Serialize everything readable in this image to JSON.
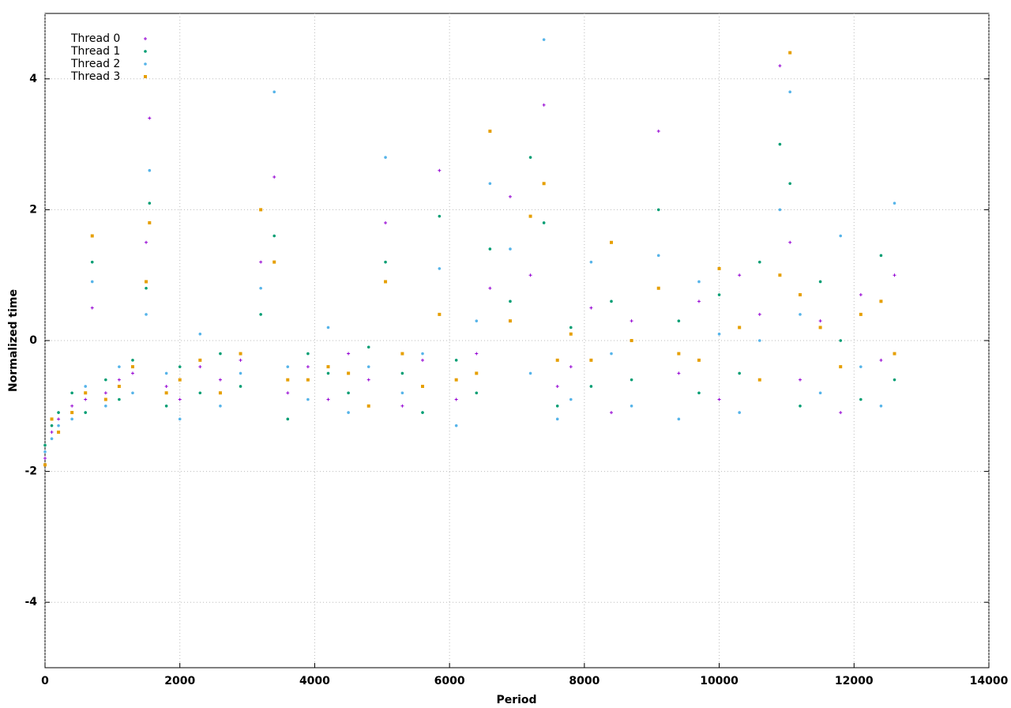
{
  "chart_data": {
    "type": "scatter",
    "x_label": "Period",
    "y_label": "Normalized time",
    "xlim": [
      0,
      14000
    ],
    "ylim": [
      -5,
      5
    ],
    "xticks": [
      0,
      2000,
      4000,
      6000,
      8000,
      10000,
      12000,
      14000
    ],
    "yticks": [
      -4,
      -2,
      0,
      2,
      4
    ],
    "grid": true,
    "legend": "top-left",
    "x": [
      0,
      100,
      200,
      400,
      600,
      700,
      900,
      1100,
      1300,
      1500,
      1550,
      1800,
      2000,
      2300,
      2600,
      2900,
      3200,
      3400,
      3600,
      3900,
      4200,
      4500,
      4800,
      5050,
      5300,
      5600,
      5850,
      6100,
      6400,
      6600,
      6900,
      7200,
      7400,
      7600,
      7800,
      8100,
      8400,
      8700,
      9100,
      9400,
      9700,
      10000,
      10300,
      10600,
      10900,
      11050,
      11200,
      11500,
      11800,
      12100,
      12400,
      12600
    ],
    "series": [
      {
        "name": "Thread 0",
        "color": "#9400d3",
        "marker": "plus",
        "values": [
          -1.8,
          -1.4,
          -1.2,
          -1.0,
          -0.9,
          0.5,
          -0.8,
          -0.6,
          -0.5,
          1.5,
          3.4,
          -0.7,
          -0.9,
          -0.4,
          -0.6,
          -0.3,
          1.2,
          2.5,
          -0.8,
          -0.4,
          -0.9,
          -0.2,
          -0.6,
          1.8,
          -1.0,
          -0.3,
          2.6,
          -0.9,
          -0.2,
          0.8,
          2.2,
          1.0,
          3.6,
          -0.7,
          -0.4,
          0.5,
          -1.1,
          0.3,
          3.2,
          -0.5,
          0.6,
          -0.9,
          1.0,
          0.4,
          4.2,
          1.5,
          -0.6,
          0.3,
          -1.1,
          0.7,
          -0.3,
          1.0
        ]
      },
      {
        "name": "Thread 1",
        "color": "#009e73",
        "marker": "dot",
        "values": [
          -1.6,
          -1.3,
          -1.1,
          -0.8,
          -1.1,
          1.2,
          -0.6,
          -0.9,
          -0.3,
          0.8,
          2.1,
          -1.0,
          -0.4,
          -0.8,
          -0.2,
          -0.7,
          0.4,
          1.6,
          -1.2,
          -0.2,
          -0.5,
          -0.8,
          -0.1,
          1.2,
          -0.5,
          -1.1,
          1.9,
          -0.3,
          -0.8,
          1.4,
          0.6,
          2.8,
          1.8,
          -1.0,
          0.2,
          -0.7,
          0.6,
          -0.6,
          2.0,
          0.3,
          -0.8,
          0.7,
          -0.5,
          1.2,
          3.0,
          2.4,
          -1.0,
          0.9,
          0.0,
          -0.9,
          1.3,
          -0.6
        ]
      },
      {
        "name": "Thread 2",
        "color": "#56b4e9",
        "marker": "dot",
        "values": [
          -1.7,
          -1.5,
          -1.3,
          -1.2,
          -0.7,
          0.9,
          -1.0,
          -0.4,
          -0.8,
          0.4,
          2.6,
          -0.5,
          -1.2,
          0.1,
          -1.0,
          -0.5,
          0.8,
          3.8,
          -0.4,
          -0.9,
          0.2,
          -1.1,
          -0.4,
          2.8,
          -0.8,
          -0.2,
          1.1,
          -1.3,
          0.3,
          2.4,
          1.4,
          -0.5,
          4.6,
          -1.2,
          -0.9,
          1.2,
          -0.2,
          -1.0,
          1.3,
          -1.2,
          0.9,
          0.1,
          -1.1,
          0.0,
          2.0,
          3.8,
          0.4,
          -0.8,
          1.6,
          -0.4,
          -1.0,
          2.1
        ]
      },
      {
        "name": "Thread 3",
        "color": "#e69f00",
        "marker": "square",
        "values": [
          -1.9,
          -1.2,
          -1.4,
          -1.1,
          -0.8,
          1.6,
          -0.9,
          -0.7,
          -0.4,
          0.9,
          1.8,
          -0.8,
          -0.6,
          -0.3,
          -0.8,
          -0.2,
          2.0,
          1.2,
          -0.6,
          -0.6,
          -0.4,
          -0.5,
          -1.0,
          0.9,
          -0.2,
          -0.7,
          0.4,
          -0.6,
          -0.5,
          3.2,
          0.3,
          1.9,
          2.4,
          -0.3,
          0.1,
          -0.3,
          1.5,
          0.0,
          0.8,
          -0.2,
          -0.3,
          1.1,
          0.2,
          -0.6,
          1.0,
          4.4,
          0.7,
          0.2,
          -0.4,
          0.4,
          0.6,
          -0.2
        ]
      }
    ]
  }
}
